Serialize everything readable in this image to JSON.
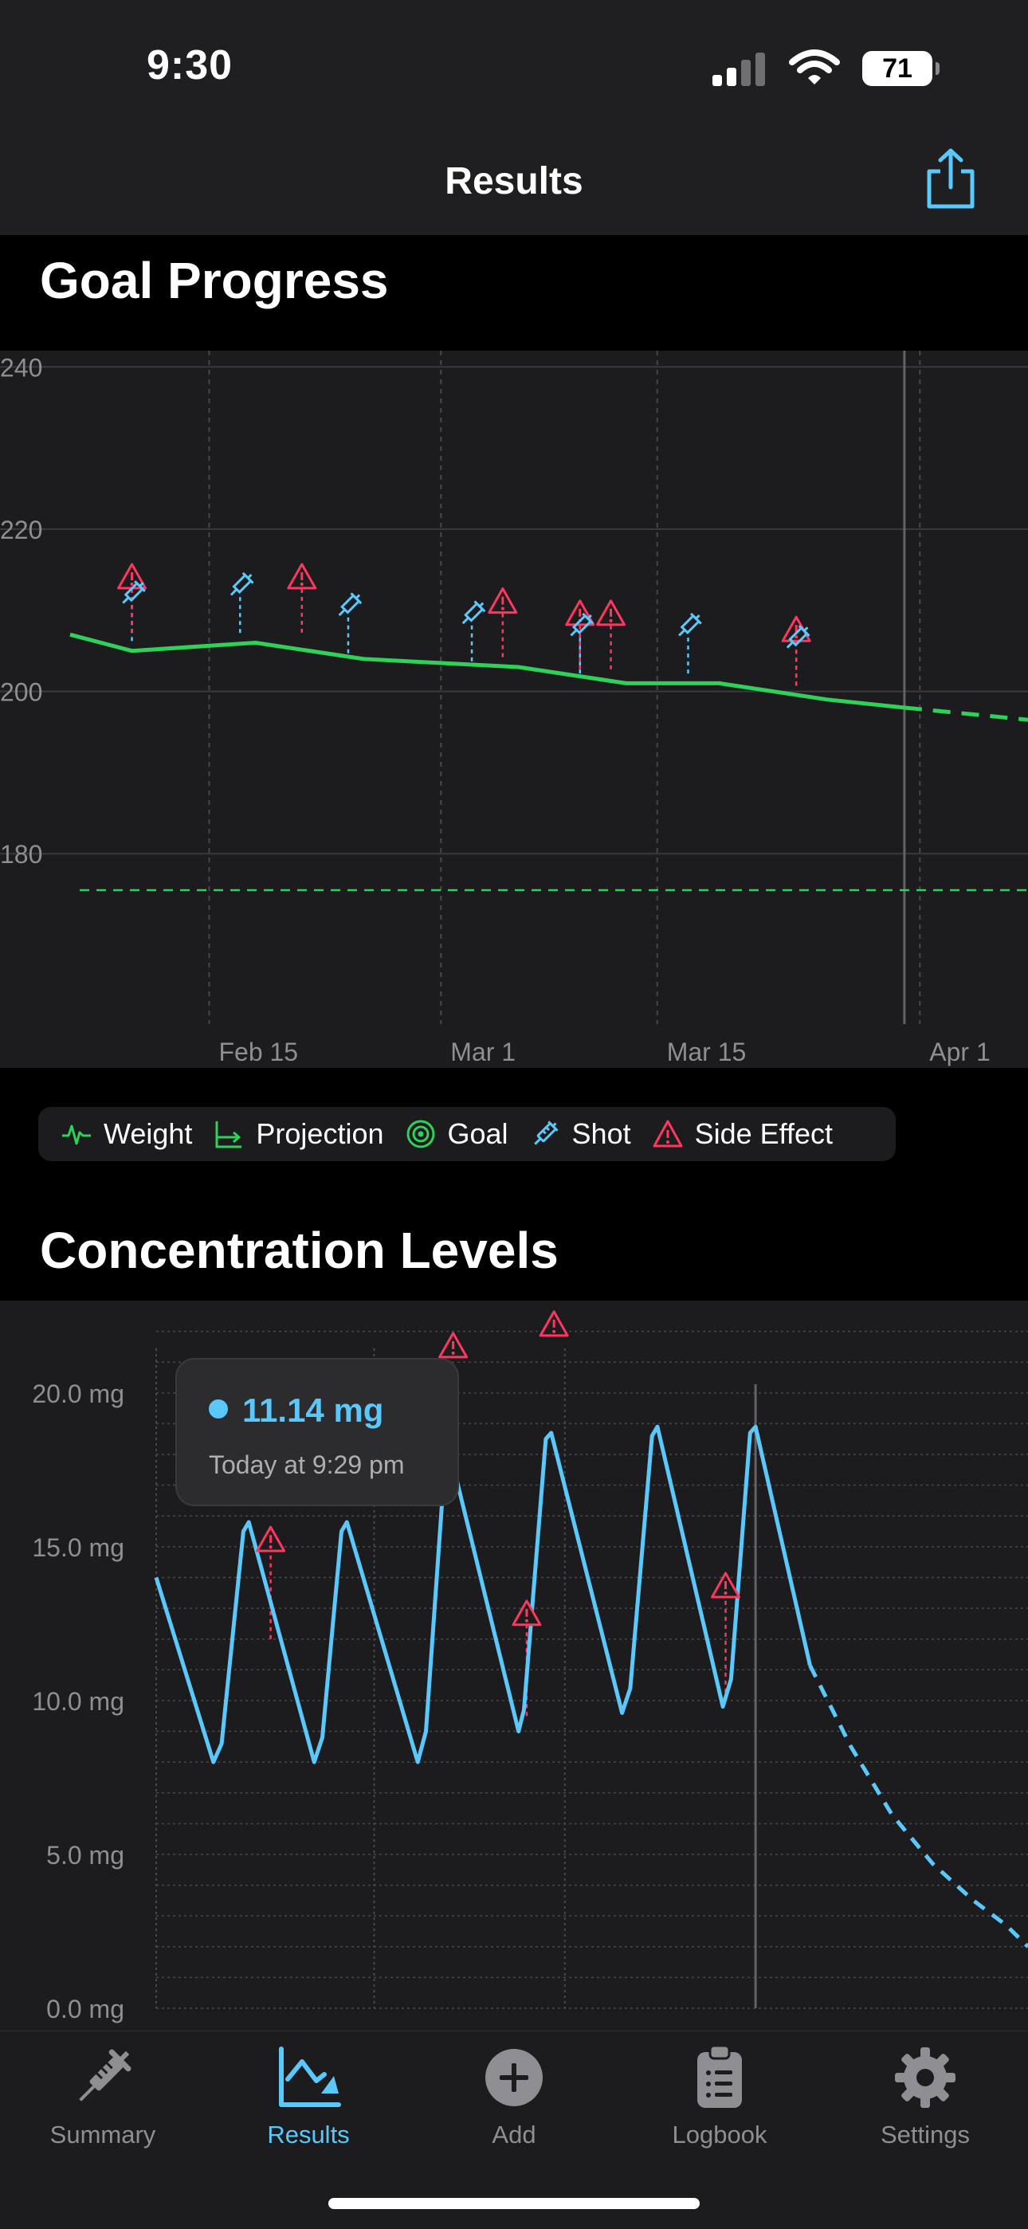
{
  "status": {
    "time": "9:30",
    "battery": "71"
  },
  "nav": {
    "title": "Results"
  },
  "goal_section": {
    "title": "Goal Progress"
  },
  "concentration_section": {
    "title": "Concentration Levels"
  },
  "legend": [
    {
      "label": "Weight",
      "icon": "weight-icon"
    },
    {
      "label": "Projection",
      "icon": "projection-icon"
    },
    {
      "label": "Goal",
      "icon": "goal-icon"
    },
    {
      "label": "Shot",
      "icon": "shot-icon"
    },
    {
      "label": "Side Effect",
      "icon": "side-effect-icon"
    }
  ],
  "tooltip": {
    "value": "11.14 mg",
    "subtitle": "Today at 9:29 pm"
  },
  "tabs": [
    {
      "label": "Summary",
      "icon": "syringe-icon",
      "active": false
    },
    {
      "label": "Results",
      "icon": "chart-icon",
      "active": true
    },
    {
      "label": "Add",
      "icon": "plus-circle-icon",
      "active": false
    },
    {
      "label": "Logbook",
      "icon": "clipboard-icon",
      "active": false
    },
    {
      "label": "Settings",
      "icon": "gear-icon",
      "active": false
    }
  ],
  "colors": {
    "weight": "#30d158",
    "goal": "#30d158",
    "concentration": "#5ac8fa",
    "shot": "#5ac8fa",
    "side_effect": "#ff375f",
    "accent": "#5ac8fa"
  },
  "chart_data": [
    {
      "type": "line",
      "title": "Goal Progress",
      "y_ticks": [
        "240",
        "220",
        "200",
        "180"
      ],
      "ylim": [
        159,
        242
      ],
      "x_ticks": [
        {
          "date": "2024-02-15",
          "label": "Feb 15"
        },
        {
          "date": "2024-03-01",
          "label": "Mar 1"
        },
        {
          "date": "2024-03-15",
          "label": "Mar 15"
        },
        {
          "date": "2024-04-01",
          "label": "Apr 1"
        }
      ],
      "xlim": [
        "2024-02-06",
        "2024-04-08"
      ],
      "today": "2024-03-31",
      "series": [
        {
          "name": "Weight",
          "points": [
            [
              "2024-02-06",
              207
            ],
            [
              "2024-02-10",
              205
            ],
            [
              "2024-02-18",
              206
            ],
            [
              "2024-02-25",
              204
            ],
            [
              "2024-03-06",
              203
            ],
            [
              "2024-03-13",
              201
            ],
            [
              "2024-03-19",
              201
            ],
            [
              "2024-03-26",
              199
            ],
            [
              "2024-03-31",
              198
            ]
          ]
        },
        {
          "name": "Projection",
          "points": [
            [
              "2024-03-31",
              198
            ],
            [
              "2024-04-08",
              196.5
            ]
          ]
        }
      ],
      "goal": 175.5,
      "shots": [
        [
          "2024-02-10",
          212
        ],
        [
          "2024-02-17",
          213
        ],
        [
          "2024-02-24",
          210.5
        ],
        [
          "2024-03-03",
          209.5
        ],
        [
          "2024-03-10",
          208
        ],
        [
          "2024-03-17",
          208
        ],
        [
          "2024-03-24",
          206.5
        ]
      ],
      "side_effects": [
        [
          "2024-02-10",
          214
        ],
        [
          "2024-02-21",
          214
        ],
        [
          "2024-03-05",
          211
        ],
        [
          "2024-03-10",
          209.5
        ],
        [
          "2024-03-12",
          209.5
        ],
        [
          "2024-03-24",
          207.5
        ]
      ]
    },
    {
      "type": "line",
      "title": "Concentration Levels",
      "y_ticks": [
        "20.0 mg",
        "15.0 mg",
        "10.0 mg",
        "5.0 mg",
        "0.0 mg"
      ],
      "ylim": [
        0,
        23
      ],
      "today": 22.0,
      "series": [
        {
          "name": "Concentration",
          "points": [
            [
              0,
              14
            ],
            [
              2.1,
              8
            ],
            [
              2.4,
              8.6
            ],
            [
              3.2,
              15.5
            ],
            [
              3.4,
              15.8
            ],
            [
              5.8,
              8
            ],
            [
              6.1,
              8.8
            ],
            [
              6.8,
              15.5
            ],
            [
              7.0,
              15.8
            ],
            [
              9.6,
              8
            ],
            [
              9.9,
              9
            ],
            [
              10.6,
              17.8
            ],
            [
              10.8,
              18
            ],
            [
              13.3,
              9
            ],
            [
              13.5,
              9.7
            ],
            [
              14.3,
              18.5
            ],
            [
              14.5,
              18.7
            ],
            [
              17.1,
              9.6
            ],
            [
              17.4,
              10.4
            ],
            [
              18.2,
              18.6
            ],
            [
              18.4,
              18.9
            ],
            [
              20.8,
              9.8
            ],
            [
              21.1,
              10.7
            ],
            [
              21.8,
              18.7
            ],
            [
              22.0,
              18.9
            ],
            [
              24.0,
              11.14
            ]
          ]
        },
        {
          "name": "Projection",
          "points": [
            [
              24.0,
              11.14
            ],
            [
              25.5,
              8.5
            ],
            [
              27.0,
              6.3
            ],
            [
              28.5,
              4.7
            ],
            [
              30.0,
              3.5
            ],
            [
              31.2,
              2.7
            ],
            [
              32.0,
              2.0
            ]
          ]
        }
      ],
      "side_effects": [
        [
          4.2,
          12
        ],
        [
          10.9,
          21.5
        ],
        [
          13.6,
          9.5
        ],
        [
          14.6,
          22.2
        ],
        [
          20.9,
          10
        ],
        [
          20.9,
          13.7
        ]
      ],
      "side_effect_tips": [
        [
          4.2,
          15.2
        ],
        [
          10.9,
          21.5
        ],
        [
          13.6,
          12.8
        ],
        [
          14.6,
          22.2
        ],
        [
          20.9,
          13.7
        ]
      ]
    }
  ]
}
